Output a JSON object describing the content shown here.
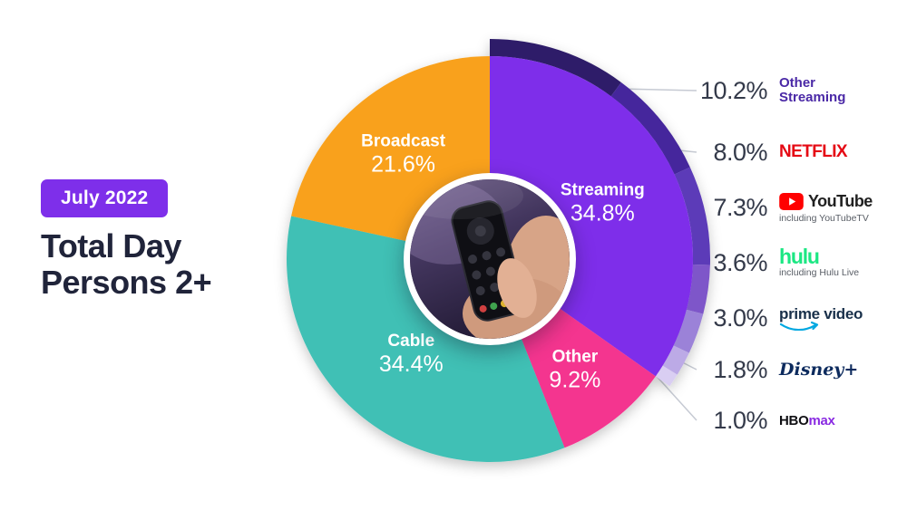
{
  "badge": {
    "label": "July 2022",
    "color": "#7E2FEA"
  },
  "title": {
    "line1": "Total Day",
    "line2": "Persons 2+"
  },
  "chart_data": {
    "type": "pie",
    "title": "Total Day Persons 2+ — July 2022",
    "start_angle_deg": -90,
    "legend_position": "right",
    "slices": [
      {
        "label": "Streaming",
        "value": 34.8,
        "color": "#7E2FEA"
      },
      {
        "label": "Other",
        "value": 9.2,
        "color": "#F4348F"
      },
      {
        "label": "Cable",
        "value": 34.4,
        "color": "#41C0B5"
      },
      {
        "label": "Broadcast",
        "value": 21.6,
        "color": "#F9A11B"
      }
    ],
    "streaming_breakdown": [
      {
        "label": "Other Streaming",
        "value": 10.2,
        "color": "#2D1B69"
      },
      {
        "label": "Netflix",
        "value": 8.0,
        "color": "#45279C"
      },
      {
        "label": "YouTube",
        "value": 7.3,
        "color": "#5B3AB8",
        "note": "including YouTubeTV"
      },
      {
        "label": "Hulu",
        "value": 3.6,
        "color": "#7E57C9",
        "note": "including Hulu Live"
      },
      {
        "label": "Prime Video",
        "value": 3.0,
        "color": "#9B82D8"
      },
      {
        "label": "Disney+",
        "value": 1.8,
        "color": "#BCAAE6"
      },
      {
        "label": "HBO Max",
        "value": 1.0,
        "color": "#D9CEF2"
      }
    ]
  },
  "legend": {
    "rows": [
      {
        "percent": "10.2%",
        "line1": "Other",
        "line2": "Streaming"
      },
      {
        "percent": "8.0%",
        "brand": "NETFLIX"
      },
      {
        "percent": "7.3%",
        "brand": "YouTube",
        "note": "including YouTubeTV"
      },
      {
        "percent": "3.6%",
        "brand": "hulu",
        "note": "including Hulu Live"
      },
      {
        "percent": "3.0%",
        "brand": "prime video"
      },
      {
        "percent": "1.8%",
        "brand": "Disney+"
      },
      {
        "percent": "1.0%",
        "brand_hbo": "HBO",
        "brand_max": "max"
      }
    ]
  }
}
